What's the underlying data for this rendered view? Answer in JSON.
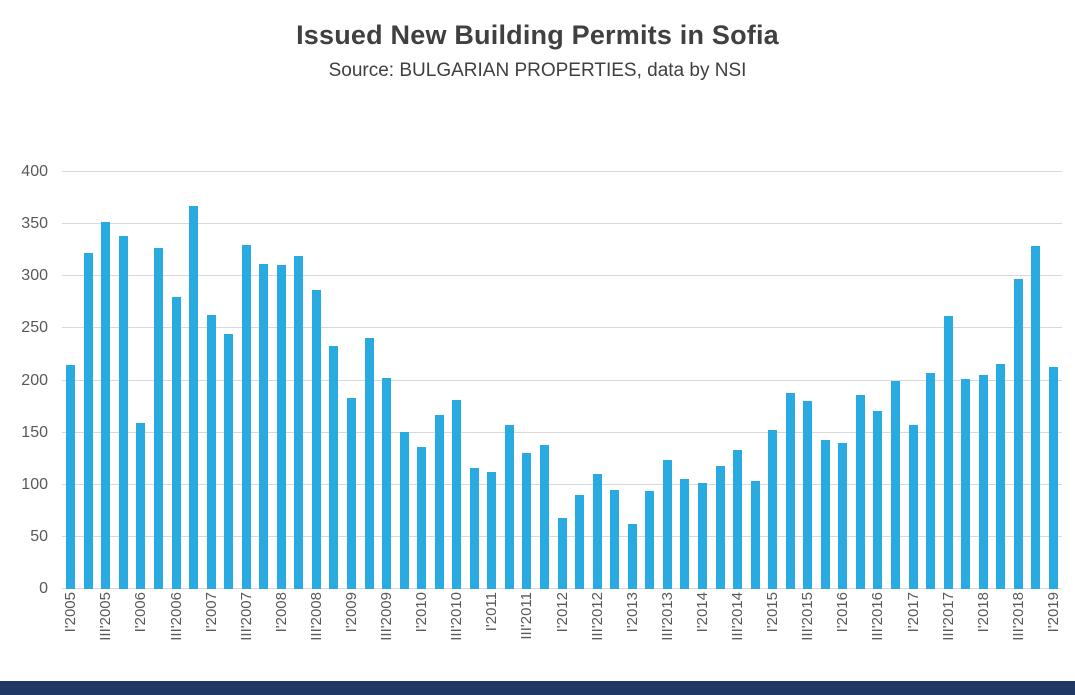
{
  "chart_data": {
    "type": "bar",
    "title": "Issued New Building Permits in Sofia",
    "subtitle": "Source: BULGARIAN PROPERTIES, data by NSI",
    "categories": [
      "I'2005",
      "II'2005",
      "III'2005",
      "IV'2005",
      "I'2006",
      "II'2006",
      "III'2006",
      "IV'2006",
      "I'2007",
      "II'2007",
      "III'2007",
      "IV'2007",
      "I'2008",
      "II'2008",
      "III'2008",
      "IV'2008",
      "I'2009",
      "II'2009",
      "III'2009",
      "IV'2009",
      "I'2010",
      "II'2010",
      "III'2010",
      "IV'2010",
      "I'2011",
      "II'2011",
      "III'2011",
      "IV'2011",
      "I'2012",
      "II'2012",
      "III'2012",
      "IV'2012",
      "I'2013",
      "II'2013",
      "III'2013",
      "IV'2013",
      "I'2014",
      "II'2014",
      "III'2014",
      "IV'2014",
      "I'2015",
      "II'2015",
      "III'2015",
      "IV'2015",
      "I'2016",
      "II'2016",
      "III'2016",
      "IV'2016",
      "I'2017",
      "II'2017",
      "III'2017",
      "IV'2017",
      "I'2018",
      "II'2018",
      "III'2018",
      "IV'2018",
      "I'2019"
    ],
    "values": [
      215,
      322,
      352,
      339,
      159,
      327,
      280,
      367,
      263,
      245,
      330,
      312,
      311,
      319,
      287,
      233,
      183,
      241,
      202,
      151,
      136,
      167,
      181,
      116,
      112,
      157,
      130,
      138,
      68,
      90,
      110,
      95,
      62,
      94,
      124,
      106,
      102,
      118,
      133,
      104,
      153,
      188,
      180,
      143,
      140,
      186,
      171,
      200,
      157,
      207,
      262,
      201,
      205,
      216,
      297,
      329,
      213
    ],
    "ylim": [
      0,
      400
    ],
    "yticks": [
      0,
      50,
      100,
      150,
      200,
      250,
      300,
      350,
      400
    ],
    "xlabel_visible_every": 2,
    "grid": "horizontal",
    "legend": "none",
    "bar_color": "#29ABE2"
  },
  "colors": {
    "title_text": "#404040",
    "axis_text": "#595959",
    "gridline": "#D9D9D9",
    "footer_bar": "#1F3864"
  }
}
